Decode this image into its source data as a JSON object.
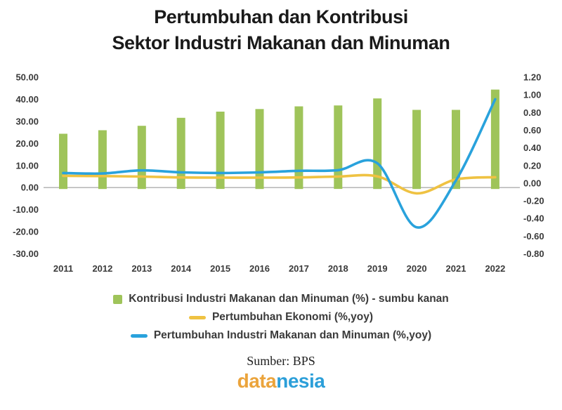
{
  "title": {
    "line1": "Pertumbuhan dan Kontribusi",
    "line2": "Sektor Industri Makanan dan Minuman"
  },
  "chart_data": {
    "type": "bar+line combo, dual axis",
    "categories": [
      "2011",
      "2012",
      "2013",
      "2014",
      "2015",
      "2016",
      "2017",
      "2018",
      "2019",
      "2020",
      "2021",
      "2022"
    ],
    "series": [
      {
        "name": "Kontribusi Industri Makanan dan Minuman (%) - sumbu kanan",
        "type": "bar",
        "axis": "right",
        "color": "#9fc45a",
        "values": [
          0.56,
          0.6,
          0.65,
          0.74,
          0.81,
          0.84,
          0.87,
          0.88,
          0.96,
          0.83,
          0.83,
          1.06
        ]
      },
      {
        "name": "Pertumbuhan Ekonomi (%,yoy)",
        "type": "line",
        "axis": "left",
        "color": "#efc242",
        "values": [
          5.3,
          5.2,
          5.0,
          4.6,
          4.5,
          4.5,
          4.6,
          5.0,
          5.1,
          -2.6,
          3.7,
          4.7
        ]
      },
      {
        "name": "Pertumbuhan Industri Makanan dan Minuman (%,yoy)",
        "type": "line",
        "axis": "left",
        "color": "#29a2dc",
        "values": [
          6.6,
          6.4,
          7.8,
          6.9,
          6.6,
          6.9,
          7.6,
          7.9,
          11.0,
          -18.0,
          3.2,
          40.0
        ]
      }
    ],
    "left_axis": {
      "min": -30,
      "max": 50,
      "ticks": [
        "50.00",
        "40.00",
        "30.00",
        "20.00",
        "10.00",
        "0.00",
        "-10.00",
        "-20.00",
        "-30.00"
      ]
    },
    "right_axis": {
      "min": -0.8,
      "max": 1.2,
      "ticks": [
        "1.20",
        "1.00",
        "0.80",
        "0.60",
        "0.40",
        "0.20",
        "0.00",
        "-0.20",
        "-0.40",
        "-0.60",
        "-0.80"
      ]
    },
    "grid": false,
    "legend_position": "bottom"
  },
  "footer": {
    "source": "Sumber: BPS",
    "logo": {
      "part1": "data",
      "part2": "nesia",
      "color1": "#eba43c",
      "color2": "#2c9fd9"
    }
  },
  "colors": {
    "axis_line": "#adadad",
    "tick_text": "#3a3a3a",
    "title_text": "#1a1a1a"
  }
}
